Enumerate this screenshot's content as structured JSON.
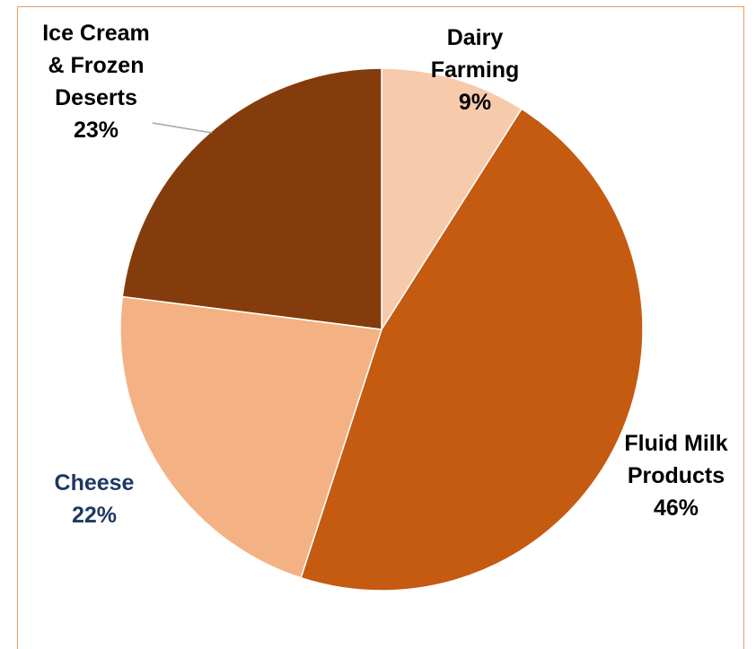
{
  "chart_data": {
    "type": "pie",
    "slices": [
      {
        "label_lines": [
          "Dairy",
          "Farming"
        ],
        "percent_label": "9%",
        "value": 9,
        "color": "#F7CAAC",
        "label_color": "#000000"
      },
      {
        "label_lines": [
          "Fluid Milk",
          "Products"
        ],
        "percent_label": "46%",
        "value": 46,
        "color": "#C55A11",
        "label_color": "#000000"
      },
      {
        "label_lines": [
          "Cheese"
        ],
        "percent_label": "22%",
        "value": 22,
        "color": "#F4B183",
        "label_color": "#1F3864"
      },
      {
        "label_lines": [
          "Ice Cream",
          "& Frozen",
          "Deserts"
        ],
        "percent_label": "23%",
        "value": 23,
        "color": "#843C0C",
        "label_color": "#000000"
      }
    ],
    "start_angle_deg": 0,
    "direction": "clockwise",
    "legend": "none",
    "frame_color": "#ED9B5F",
    "leader_line_color": "#A6A6A6"
  }
}
